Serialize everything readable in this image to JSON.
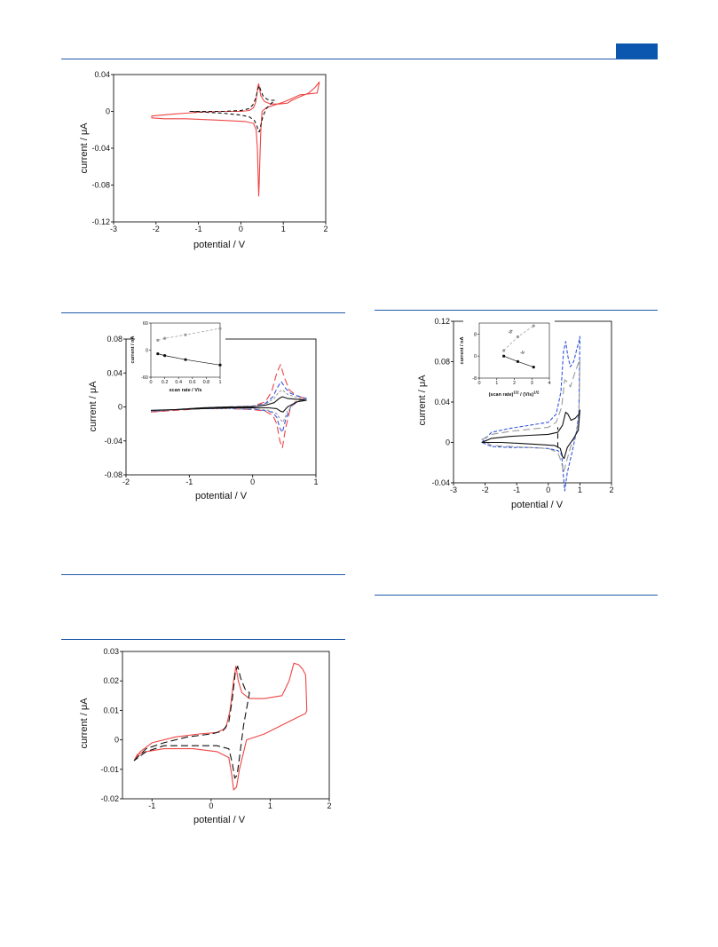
{
  "colors": {
    "accent": "#1d5aa8",
    "tab": "#0b57b0",
    "red": "#ee4444",
    "blue": "#3355dd",
    "gray": "#999999",
    "black": "#111111"
  },
  "chart_data": [
    {
      "id": "fig1",
      "type": "line",
      "xlabel": "potential / V",
      "ylabel": "current / μA",
      "xlim": [
        -3,
        2
      ],
      "ylim": [
        -0.12,
        0.04
      ],
      "xticks": [
        -3,
        -2,
        -1,
        0,
        1,
        2
      ],
      "yticks": [
        -0.12,
        -0.08,
        -0.04,
        0,
        0.04
      ],
      "ytick_labels": [
        "-0.12",
        "-0.08",
        "-0.04",
        "0",
        "0.04"
      ],
      "grid": false,
      "series": [
        {
          "color": "#ee4444",
          "dash": "",
          "closed": true,
          "x": [
            -2.1,
            -1.6,
            -1.0,
            -0.5,
            0.0,
            0.2,
            0.3,
            0.35,
            0.38,
            0.4,
            0.42,
            0.44,
            0.47,
            0.55,
            0.7,
            0.9,
            1.1,
            1.2,
            1.4,
            1.6,
            1.75,
            1.85,
            1.8,
            1.6,
            1.4,
            1.2,
            1.0,
            0.8,
            0.6,
            0.5,
            0.47,
            0.45,
            0.43,
            0.42,
            0.41,
            0.39,
            0.36,
            0.3,
            0.1,
            -0.3,
            -0.8,
            -1.3,
            -1.8,
            -2.1
          ],
          "y": [
            -0.005,
            -0.003,
            -0.001,
            0.0,
            0.0,
            0.001,
            0.004,
            0.01,
            0.02,
            0.027,
            0.03,
            0.025,
            0.017,
            0.011,
            0.008,
            0.008,
            0.009,
            0.012,
            0.016,
            0.02,
            0.026,
            0.032,
            0.02,
            0.019,
            0.018,
            0.014,
            0.01,
            0.007,
            0.004,
            0.0,
            -0.02,
            -0.05,
            -0.08,
            -0.092,
            -0.075,
            -0.04,
            -0.02,
            -0.013,
            -0.011,
            -0.01,
            -0.009,
            -0.008,
            -0.008,
            -0.007
          ]
        },
        {
          "color": "#111111",
          "dash": "4,3",
          "closed": true,
          "x": [
            -1.2,
            -0.8,
            -0.4,
            0.0,
            0.2,
            0.3,
            0.36,
            0.4,
            0.43,
            0.46,
            0.52,
            0.62,
            0.72,
            0.8,
            0.7,
            0.6,
            0.52,
            0.47,
            0.44,
            0.41,
            0.38,
            0.32,
            0.2,
            0.0,
            -0.4,
            -0.8,
            -1.2
          ],
          "y": [
            0.0,
            0.0,
            0.0,
            0.001,
            0.003,
            0.008,
            0.016,
            0.024,
            0.028,
            0.024,
            0.017,
            0.013,
            0.012,
            0.012,
            0.008,
            0.003,
            -0.005,
            -0.015,
            -0.022,
            -0.022,
            -0.016,
            -0.01,
            -0.006,
            -0.004,
            -0.002,
            -0.001,
            0.0
          ]
        }
      ]
    },
    {
      "id": "fig2",
      "type": "line",
      "xlabel": "potential / V",
      "ylabel": "current / μA",
      "xlim": [
        -2,
        1
      ],
      "ylim": [
        -0.08,
        0.08
      ],
      "xticks": [
        -2,
        -1,
        0,
        1
      ],
      "yticks": [
        -0.08,
        -0.04,
        0,
        0.04,
        0.08
      ],
      "ytick_labels": [
        "-0.08",
        "-0.04",
        "0",
        "0.04",
        "0.08"
      ],
      "grid": false,
      "series": [
        {
          "color": "#ee4444",
          "dash": "8,4",
          "closed": true,
          "x": [
            -1.6,
            -1.2,
            -0.8,
            -0.4,
            0.0,
            0.2,
            0.3,
            0.38,
            0.44,
            0.5,
            0.58,
            0.7,
            0.85,
            0.7,
            0.6,
            0.52,
            0.47,
            0.43,
            0.38,
            0.32,
            0.2,
            0.0,
            -0.4,
            -0.8,
            -1.2,
            -1.6
          ],
          "y": [
            -0.006,
            -0.004,
            -0.002,
            0.0,
            0.001,
            0.006,
            0.018,
            0.04,
            0.05,
            0.035,
            0.02,
            0.013,
            0.01,
            0.008,
            0.0,
            -0.025,
            -0.048,
            -0.04,
            -0.02,
            -0.01,
            -0.005,
            -0.003,
            -0.002,
            -0.002,
            -0.003,
            -0.006
          ]
        },
        {
          "color": "#3355dd",
          "dash": "5,3",
          "closed": true,
          "x": [
            -1.6,
            -1.2,
            -0.8,
            -0.4,
            0.0,
            0.2,
            0.32,
            0.4,
            0.45,
            0.52,
            0.6,
            0.75,
            0.85,
            0.72,
            0.6,
            0.52,
            0.47,
            0.43,
            0.38,
            0.3,
            0.1,
            -0.3,
            -0.8,
            -1.2,
            -1.6
          ],
          "y": [
            -0.005,
            -0.003,
            -0.001,
            0.0,
            0.001,
            0.004,
            0.012,
            0.024,
            0.03,
            0.022,
            0.016,
            0.012,
            0.01,
            0.007,
            0.0,
            -0.015,
            -0.03,
            -0.025,
            -0.012,
            -0.006,
            -0.003,
            -0.002,
            -0.002,
            -0.003,
            -0.005
          ]
        },
        {
          "color": "#999999",
          "dash": "3,2",
          "closed": true,
          "x": [
            -1.6,
            -1.2,
            -0.8,
            -0.4,
            0.0,
            0.2,
            0.34,
            0.42,
            0.47,
            0.55,
            0.7,
            0.85,
            0.7,
            0.55,
            0.48,
            0.44,
            0.38,
            0.25,
            0.0,
            -0.4,
            -0.8,
            -1.2,
            -1.6
          ],
          "y": [
            -0.005,
            -0.003,
            -0.001,
            0.0,
            0.001,
            0.003,
            0.01,
            0.018,
            0.02,
            0.015,
            0.011,
            0.009,
            0.007,
            -0.005,
            -0.018,
            -0.015,
            -0.008,
            -0.004,
            -0.002,
            -0.002,
            -0.002,
            -0.003,
            -0.005
          ]
        },
        {
          "color": "#111111",
          "dash": "",
          "closed": true,
          "x": [
            -1.6,
            -1.2,
            -0.8,
            -0.4,
            0.0,
            0.2,
            0.34,
            0.42,
            0.47,
            0.55,
            0.7,
            0.85,
            0.7,
            0.55,
            0.48,
            0.44,
            0.38,
            0.25,
            0.0,
            -0.4,
            -0.8,
            -1.2,
            -1.6
          ],
          "y": [
            -0.004,
            -0.003,
            -0.001,
            0.0,
            0.0,
            0.002,
            0.005,
            0.01,
            0.012,
            0.01,
            0.009,
            0.008,
            0.006,
            0.0,
            -0.006,
            -0.005,
            -0.002,
            -0.001,
            -0.001,
            -0.001,
            -0.002,
            -0.003,
            -0.004
          ]
        }
      ],
      "inset": {
        "type": "scatter",
        "xlabel": "scan rate / V/s",
        "ylabel": "current / nA",
        "xlim": [
          0,
          1
        ],
        "ylim": [
          -60,
          60
        ],
        "xticks": [
          0,
          0.2,
          0.4,
          0.6,
          0.8,
          1
        ],
        "xtick_labels": [
          "0",
          "0.2",
          "0.4",
          "0.6",
          "0.8",
          "1"
        ],
        "yticks": [
          -60,
          0,
          60
        ],
        "ytick_labels": [
          "-60",
          "0",
          "60"
        ],
        "series": [
          {
            "color": "#999999",
            "dash": "3,2",
            "x": [
              0.1,
              0.2,
              0.5,
              1.0
            ],
            "y": [
              22,
              26,
              34,
              48
            ]
          },
          {
            "color": "#111111",
            "dash": "",
            "x": [
              0.1,
              0.2,
              0.5,
              1.0
            ],
            "y": [
              -8,
              -12,
              -21,
              -33
            ]
          }
        ]
      }
    },
    {
      "id": "fig3",
      "type": "line",
      "xlabel": "potential / V",
      "ylabel": "current / μA",
      "xlim": [
        -3,
        2
      ],
      "ylim": [
        -0.04,
        0.12
      ],
      "xticks": [
        -3,
        -2,
        -1,
        0,
        1,
        2
      ],
      "yticks": [
        -0.04,
        0,
        0.04,
        0.08,
        0.12
      ],
      "ytick_labels": [
        "-0.04",
        "0",
        "0.04",
        "0.08",
        "0.12"
      ],
      "grid": false,
      "series": [
        {
          "color": "#3355dd",
          "dash": "4,2",
          "closed": true,
          "x": [
            -2.1,
            -1.8,
            -1.2,
            -0.6,
            0.0,
            0.25,
            0.4,
            0.48,
            0.55,
            0.62,
            0.7,
            0.8,
            0.9,
            0.97,
            1.0,
            0.97,
            0.9,
            0.75,
            0.6,
            0.52,
            0.47,
            0.42,
            0.3,
            0.0,
            -0.6,
            -1.2,
            -1.8,
            -2.1
          ],
          "y": [
            0.0,
            0.01,
            0.014,
            0.017,
            0.02,
            0.028,
            0.05,
            0.09,
            0.1,
            0.085,
            0.075,
            0.08,
            0.092,
            0.1,
            0.105,
            0.03,
            0.012,
            -0.01,
            -0.03,
            -0.048,
            -0.03,
            -0.012,
            -0.008,
            -0.006,
            -0.005,
            -0.005,
            -0.004,
            0.0
          ]
        },
        {
          "color": "#999999",
          "dash": "8,4",
          "closed": true,
          "x": [
            -2.1,
            -1.8,
            -1.2,
            -0.6,
            0.0,
            0.25,
            0.42,
            0.52,
            0.6,
            0.7,
            0.85,
            0.97,
            1.0,
            0.97,
            0.9,
            0.7,
            0.55,
            0.48,
            0.42,
            0.3,
            0.0,
            -0.6,
            -1.2,
            -1.8,
            -2.1
          ],
          "y": [
            0.003,
            0.008,
            0.011,
            0.013,
            0.015,
            0.02,
            0.035,
            0.062,
            0.06,
            0.055,
            0.07,
            0.08,
            0.082,
            0.025,
            0.01,
            -0.005,
            -0.022,
            -0.03,
            -0.02,
            -0.01,
            -0.006,
            -0.005,
            -0.004,
            -0.003,
            0.003
          ]
        },
        {
          "color": "#111111",
          "dash": "",
          "closed": true,
          "x": [
            -2.1,
            -1.8,
            -1.2,
            -0.6,
            0.0,
            0.3,
            0.45,
            0.55,
            0.62,
            0.72,
            0.85,
            0.97,
            1.0,
            0.95,
            0.8,
            0.6,
            0.5,
            0.45,
            0.38,
            0.2,
            -0.3,
            -0.9,
            -1.5,
            -2.1
          ],
          "y": [
            0.0,
            0.004,
            0.006,
            0.007,
            0.008,
            0.01,
            0.017,
            0.03,
            0.028,
            0.022,
            0.024,
            0.028,
            0.032,
            0.012,
            0.004,
            -0.005,
            -0.016,
            -0.014,
            -0.006,
            -0.003,
            -0.002,
            -0.001,
            0.0,
            0.0
          ]
        },
        {
          "color": "#111111",
          "dash": "6,4",
          "closed": false,
          "x": [
            0.3,
            0.3
          ],
          "y": [
            -0.005,
            0.015
          ]
        }
      ],
      "inset": {
        "type": "scatter",
        "xlabel": "(scan rate)^1/2 / (V/s)^1/2",
        "xlabel_main": "(scan rate)",
        "xlabel_sup1": "1/2",
        "xlabel_mid": " / (V/s)",
        "xlabel_sup2": "1/2",
        "ylabel": "current / nA",
        "xlim": [
          0,
          4
        ],
        "ylim": [
          -8,
          12
        ],
        "xticks": [
          0,
          1,
          2,
          3,
          4
        ],
        "xtick_labels": [
          "0",
          "1",
          "2",
          "3",
          "4"
        ],
        "yticks": [
          -8,
          0,
          8
        ],
        "ytick_labels": [
          "-8",
          "0",
          "8"
        ],
        "series": [
          {
            "color": "#999999",
            "dash": "3,2",
            "x": [
              1.4,
              2.2,
              3.1
            ],
            "y": [
              2,
              7,
              11
            ]
          },
          {
            "color": "#111111",
            "dash": "",
            "x": [
              1.4,
              2.2,
              3.1
            ],
            "y": [
              0,
              -2,
              -4
            ]
          }
        ],
        "annotations": [
          {
            "text": "Ia",
            "x": 1.8,
            "y": 8
          },
          {
            "text": "Ic",
            "x": 2.5,
            "y": 0.5
          }
        ]
      }
    },
    {
      "id": "fig4",
      "type": "line",
      "xlabel": "potential / V",
      "ylabel": "current / μA",
      "xlim": [
        -1.5,
        2
      ],
      "ylim": [
        -0.02,
        0.03
      ],
      "xticks": [
        -1,
        0,
        1,
        2
      ],
      "yticks": [
        -0.02,
        -0.01,
        0,
        0.01,
        0.02,
        0.03
      ],
      "ytick_labels": [
        "-0.02",
        "-0.01",
        "0",
        "0.01",
        "0.02",
        "0.03"
      ],
      "grid": false,
      "series": [
        {
          "color": "#ee4444",
          "dash": "",
          "closed": true,
          "x": [
            -1.3,
            -1.2,
            -1.0,
            -0.6,
            -0.2,
            0.1,
            0.25,
            0.32,
            0.38,
            0.42,
            0.46,
            0.52,
            0.65,
            0.9,
            1.2,
            1.32,
            1.4,
            1.48,
            1.55,
            1.6,
            1.62,
            1.6,
            1.5,
            1.2,
            0.9,
            0.6,
            0.48,
            0.43,
            0.38,
            0.35,
            0.3,
            0.1,
            -0.3,
            -0.8,
            -1.1,
            -1.25,
            -1.3
          ],
          "y": [
            -0.007,
            -0.004,
            -0.001,
            0.001,
            0.002,
            0.0025,
            0.004,
            0.01,
            0.02,
            0.025,
            0.02,
            0.016,
            0.014,
            0.014,
            0.015,
            0.02,
            0.026,
            0.0255,
            0.024,
            0.022,
            0.01,
            0.009,
            0.008,
            0.005,
            0.002,
            0.0,
            -0.01,
            -0.016,
            -0.017,
            -0.012,
            -0.006,
            -0.004,
            -0.003,
            -0.003,
            -0.004,
            -0.005,
            -0.007
          ]
        },
        {
          "color": "#111111",
          "dash": "8,4",
          "closed": true,
          "x": [
            -1.3,
            -1.1,
            -0.8,
            -0.4,
            0.0,
            0.2,
            0.3,
            0.36,
            0.41,
            0.45,
            0.5,
            0.58,
            0.65,
            0.55,
            0.48,
            0.44,
            0.4,
            0.36,
            0.3,
            0.1,
            -0.3,
            -0.8,
            -1.1,
            -1.3
          ],
          "y": [
            -0.007,
            -0.003,
            -0.001,
            0.001,
            0.002,
            0.003,
            0.006,
            0.014,
            0.023,
            0.025,
            0.021,
            0.017,
            0.016,
            0.005,
            -0.006,
            -0.012,
            -0.013,
            -0.008,
            -0.003,
            -0.002,
            -0.002,
            -0.002,
            -0.004,
            -0.007
          ]
        }
      ]
    }
  ]
}
